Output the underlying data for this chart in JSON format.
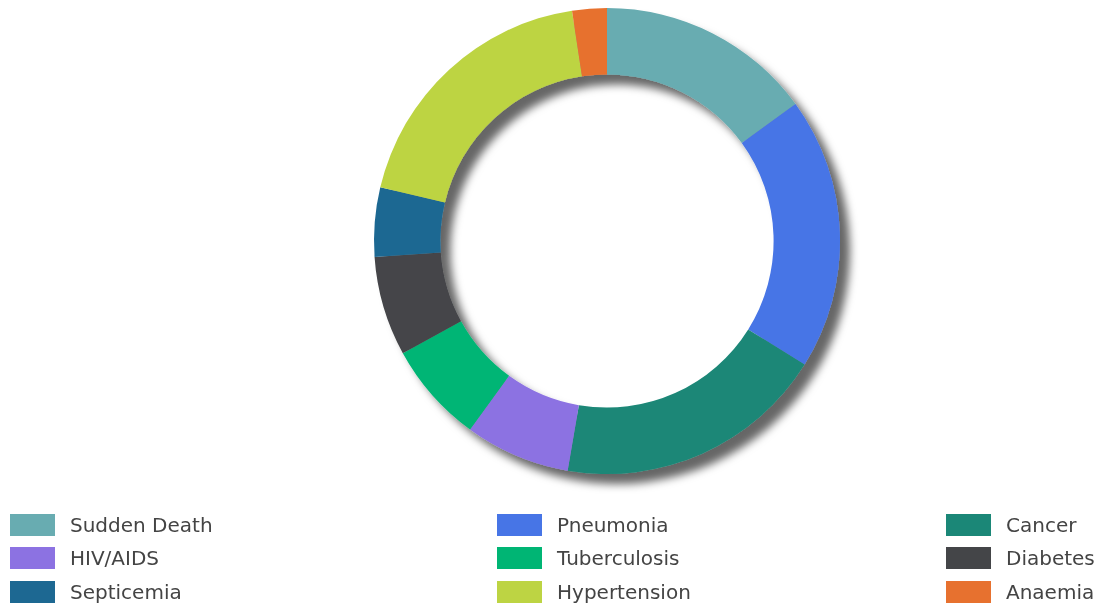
{
  "chart_data": {
    "type": "donut",
    "categories": [
      "Sudden Death",
      "Pneumonia",
      "Cancer",
      "HIV/AIDS",
      "Tuberculosis",
      "Diabetes",
      "Septicemia",
      "Hypertension",
      "Anaemia"
    ],
    "values": [
      15,
      18.9,
      18.8,
      7.3,
      7,
      6.9,
      4.8,
      18.9,
      2.4
    ],
    "colors": [
      "#68acb1",
      "#4775e6",
      "#1b8777",
      "#8c72e2",
      "#00b574",
      "#444548",
      "#1d6892",
      "#bdd443",
      "#e7712f"
    ],
    "legend": "bottom"
  }
}
